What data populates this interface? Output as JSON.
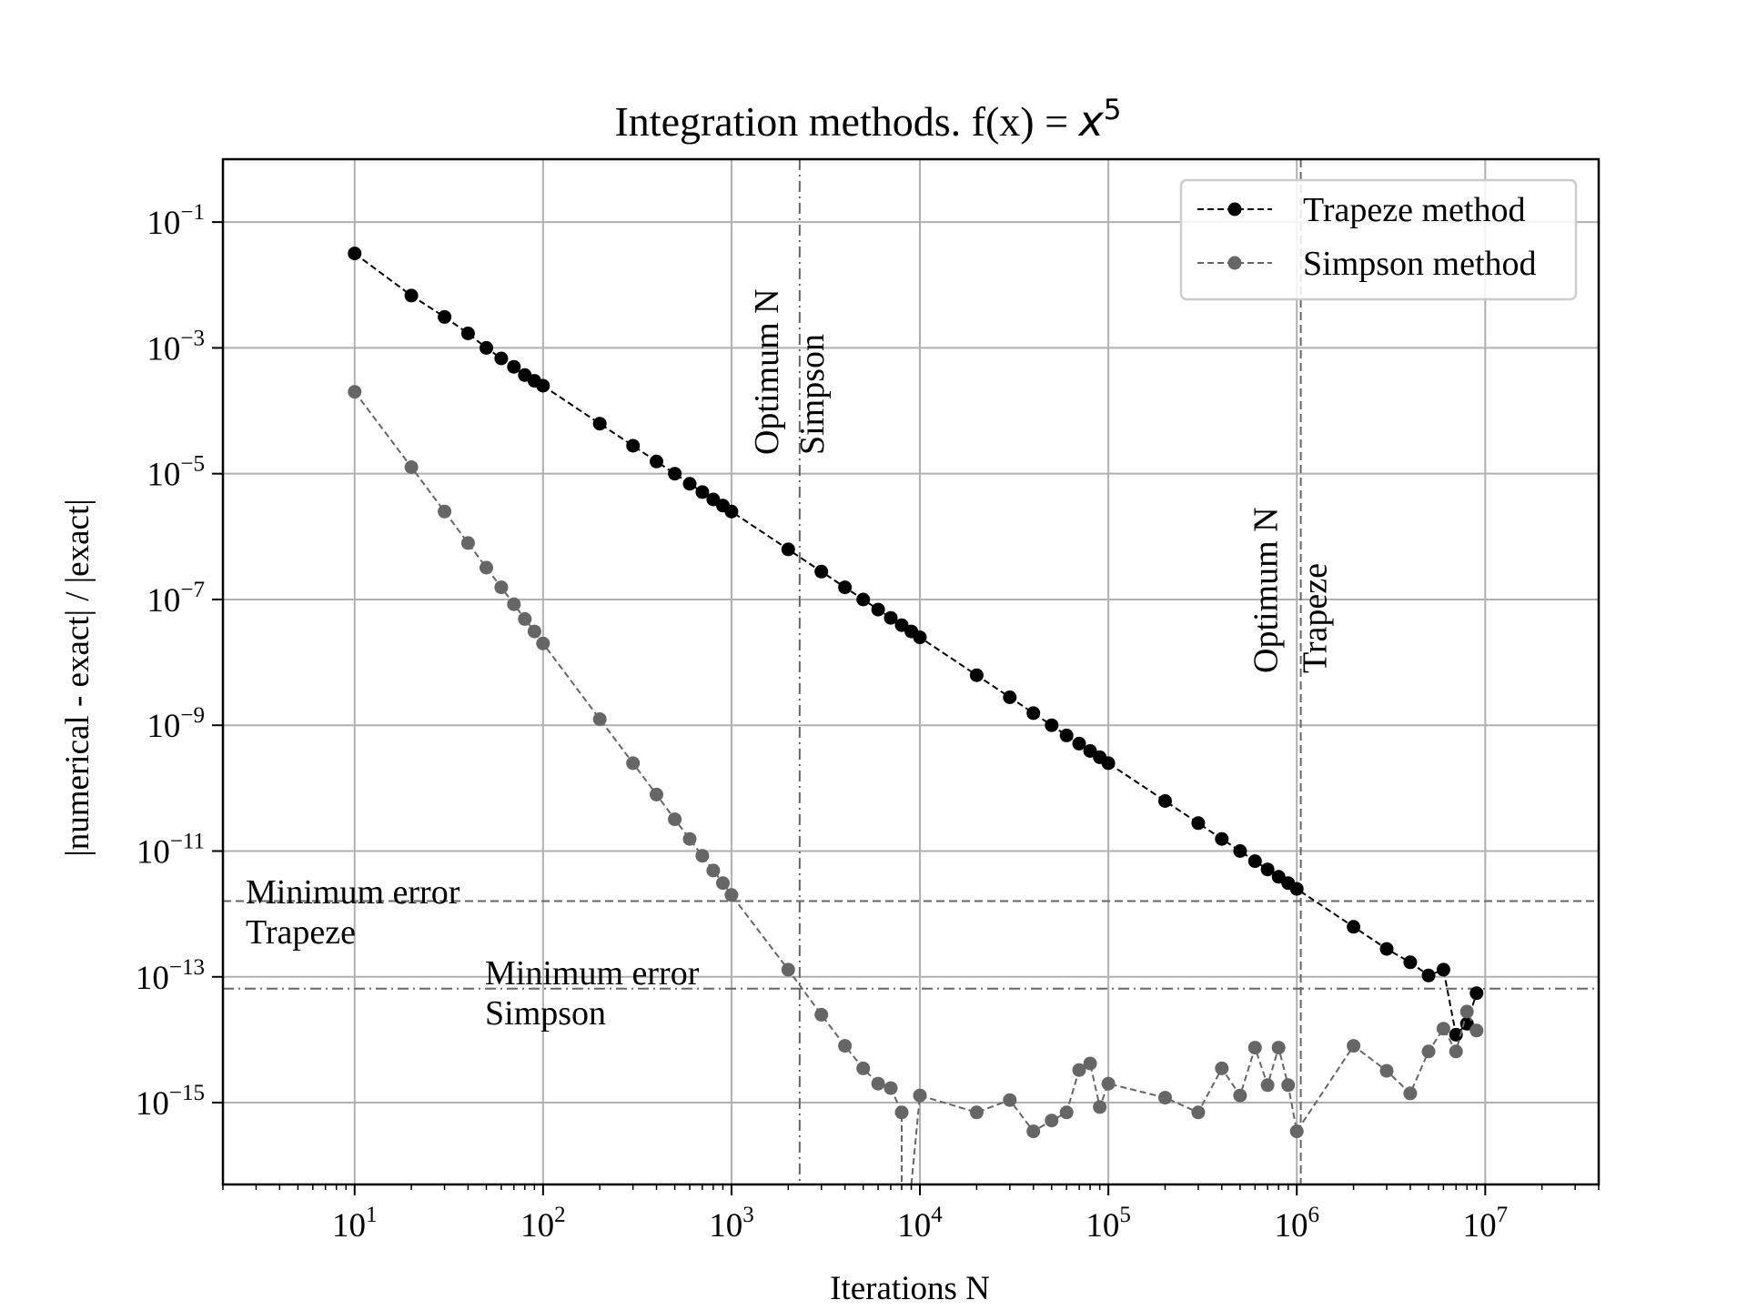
{
  "chart_data": {
    "type": "line",
    "title": "Integration methods. f(x) = ",
    "title_math": "x",
    "title_math_exponent": "5",
    "xlabel": "Iterations N",
    "ylabel": "|numerical - exact| / |exact|",
    "xscale": "log",
    "yscale": "log",
    "xlim": [
      2,
      40000000
    ],
    "ylim": [
      5e-17,
      1
    ],
    "grid": true,
    "legend_position": "top-right",
    "x_ticks": [
      {
        "value": 10,
        "base": "10",
        "exp": "1"
      },
      {
        "value": 100,
        "base": "10",
        "exp": "2"
      },
      {
        "value": 1000,
        "base": "10",
        "exp": "3"
      },
      {
        "value": 10000,
        "base": "10",
        "exp": "4"
      },
      {
        "value": 100000,
        "base": "10",
        "exp": "5"
      },
      {
        "value": 1000000,
        "base": "10",
        "exp": "6"
      },
      {
        "value": 10000000,
        "base": "10",
        "exp": "7"
      }
    ],
    "y_ticks": [
      {
        "value": 0.1,
        "base": "10",
        "exp": "−1"
      },
      {
        "value": 0.001,
        "base": "10",
        "exp": "−3"
      },
      {
        "value": 1e-05,
        "base": "10",
        "exp": "−5"
      },
      {
        "value": 1e-07,
        "base": "10",
        "exp": "−7"
      },
      {
        "value": 1e-09,
        "base": "10",
        "exp": "−9"
      },
      {
        "value": 1e-11,
        "base": "10",
        "exp": "−11"
      },
      {
        "value": 1e-13,
        "base": "10",
        "exp": "−13"
      },
      {
        "value": 1e-15,
        "base": "10",
        "exp": "−15"
      }
    ],
    "series": [
      {
        "name": "Trapeze method",
        "color": "#000000",
        "line_style": "dashed",
        "marker": "circle",
        "x": [
          10,
          20,
          30,
          40,
          50,
          60,
          70,
          80,
          90,
          100,
          200,
          300,
          400,
          500,
          600,
          700,
          800,
          900,
          1000,
          2000,
          3000,
          4000,
          5000,
          6000,
          7000,
          8000,
          9000,
          10000,
          20000,
          30000,
          40000,
          50000,
          60000,
          70000,
          80000,
          90000,
          100000,
          200000,
          300000,
          400000,
          500000,
          600000,
          700000,
          800000,
          900000,
          1000000,
          2000000,
          3000000,
          4000000,
          5000000,
          6000000,
          7000000,
          8000000,
          9000000
        ],
        "y": [
          0.0317,
          0.0068,
          0.0031,
          0.0017,
          0.001,
          0.00068,
          0.0005,
          0.00037,
          0.0003,
          0.00025,
          6.25e-05,
          2.78e-05,
          1.56e-05,
          1e-05,
          6.9e-06,
          5.1e-06,
          3.9e-06,
          3.1e-06,
          2.5e-06,
          6.25e-07,
          2.78e-07,
          1.56e-07,
          1e-07,
          6.9e-08,
          5.1e-08,
          3.9e-08,
          3.1e-08,
          2.5e-08,
          6.25e-09,
          2.78e-09,
          1.56e-09,
          1e-09,
          6.9e-10,
          5.1e-10,
          3.9e-10,
          3.1e-10,
          2.5e-10,
          6.25e-11,
          2.78e-11,
          1.56e-11,
          1e-11,
          6.9e-12,
          5.1e-12,
          3.9e-12,
          3.1e-12,
          2.5e-12,
          6.25e-13,
          2.78e-13,
          1.7e-13,
          1.05e-13,
          1.3e-13,
          1.2e-14,
          1.8e-14,
          5.5e-14
        ]
      },
      {
        "name": "Simpson method",
        "color": "#666666",
        "line_style": "dashed",
        "marker": "circle",
        "x": [
          10,
          20,
          30,
          40,
          50,
          60,
          70,
          80,
          90,
          100,
          200,
          300,
          400,
          500,
          600,
          700,
          800,
          900,
          1000,
          2000,
          3000,
          4000,
          5000,
          6000,
          7000,
          8000,
          9000,
          10000,
          20000,
          30000,
          40000,
          50000,
          60000,
          70000,
          80000,
          90000,
          100000,
          200000,
          300000,
          400000,
          500000,
          600000,
          700000,
          800000,
          900000,
          1000000,
          2000000,
          3000000,
          4000000,
          5000000,
          6000000,
          7000000,
          8000000,
          9000000
        ],
        "y": [
          0.0002,
          1.27e-05,
          2.5e-06,
          7.9e-07,
          3.2e-07,
          1.56e-07,
          8.4e-08,
          4.9e-08,
          3.1e-08,
          2e-08,
          1.25e-09,
          2.5e-10,
          7.9e-11,
          3.2e-11,
          1.56e-11,
          8.4e-12,
          4.9e-12,
          3.1e-12,
          2e-12,
          1.3e-13,
          2.5e-14,
          8e-15,
          3.5e-15,
          2e-15,
          1.7e-15,
          7e-16,
          null,
          1.3e-15,
          7e-16,
          1.1e-15,
          3.5e-16,
          5.2e-16,
          7e-16,
          3.3e-15,
          4.2e-15,
          8.5e-16,
          2e-15,
          1.2e-15,
          7e-16,
          3.5e-15,
          1.3e-15,
          7.5e-15,
          1.9e-15,
          7.5e-15,
          1.9e-15,
          3.5e-16,
          8e-15,
          3.2e-15,
          1.4e-15,
          6.5e-15,
          1.5e-14,
          6.5e-15,
          2.8e-14,
          1.4e-14
        ]
      }
    ],
    "reference_lines": [
      {
        "orientation": "vertical",
        "value": 2300,
        "style": "dash-dot",
        "color": "#666666",
        "label_line1": "Optimum N",
        "label_line2": "Simpson"
      },
      {
        "orientation": "vertical",
        "value": 1050000,
        "style": "dashed",
        "color": "#666666",
        "label_line1": "Optimum N",
        "label_line2": "Trapeze"
      },
      {
        "orientation": "horizontal",
        "value": 1.6e-12,
        "style": "dashed",
        "color": "#666666",
        "label_line1": "Minimum error",
        "label_line2": "Trapeze"
      },
      {
        "orientation": "horizontal",
        "value": 6.5e-14,
        "style": "dash-dot",
        "color": "#666666",
        "label_line1": "Minimum error",
        "label_line2": "Simpson"
      }
    ]
  }
}
